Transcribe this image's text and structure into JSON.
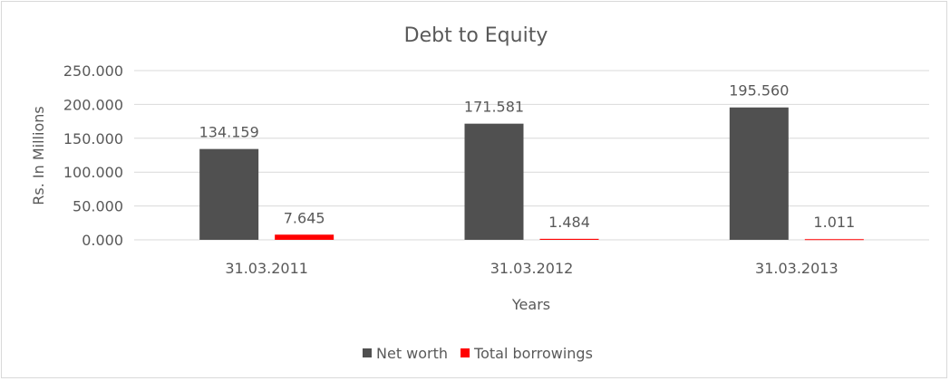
{
  "chart_data": {
    "type": "bar",
    "title": "Debt to Equity",
    "xlabel": "Years",
    "ylabel": "Rs. In Millions",
    "categories": [
      "31.03.2011",
      "31.03.2012",
      "31.03.2013"
    ],
    "series": [
      {
        "name": "Net worth",
        "values": [
          134.159,
          171.581,
          195.56
        ],
        "labels": [
          "134.159",
          "171.581",
          "195.560"
        ],
        "color": "#505050"
      },
      {
        "name": "Total borrowings",
        "values": [
          7.645,
          1.484,
          1.011
        ],
        "labels": [
          "7.645",
          "1.484",
          "1.011"
        ],
        "color": "#ff0000"
      }
    ],
    "ylim": [
      0,
      250
    ],
    "yticks": [
      "0.000",
      "50.000",
      "100.000",
      "150.000",
      "200.000",
      "250.000"
    ],
    "grid": true,
    "legend": "bottom"
  }
}
